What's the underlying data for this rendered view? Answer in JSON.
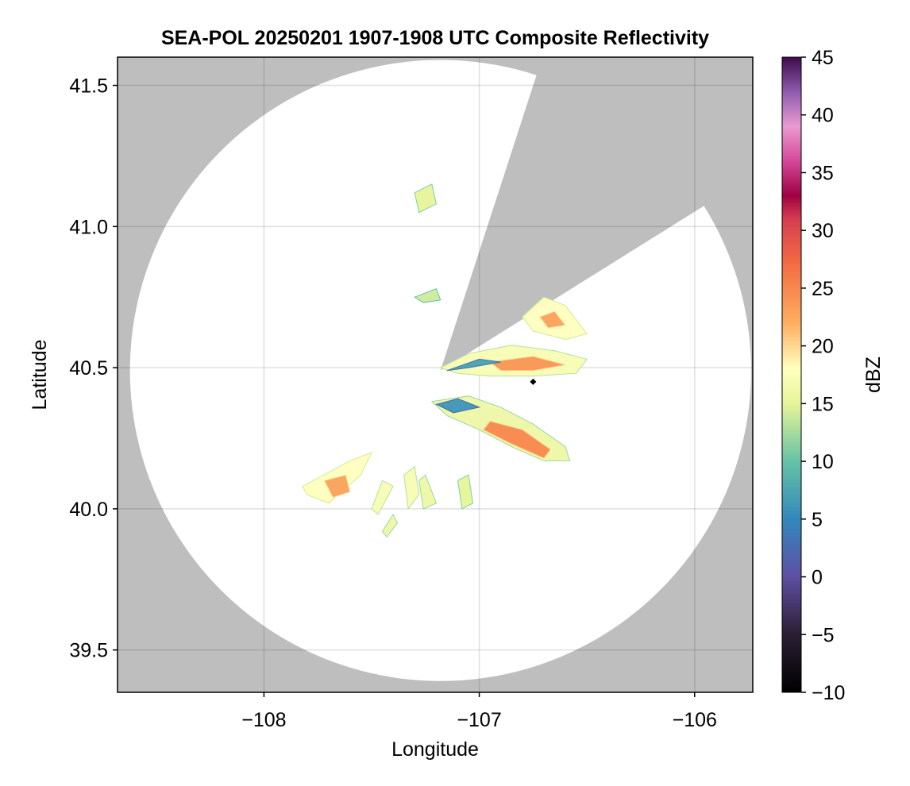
{
  "chart_data": {
    "type": "heatmap",
    "title": "SEA-POL 20250201 1907-1908 UTC Composite Reflectivity",
    "xlabel": "Longitude",
    "ylabel": "Latitude",
    "xlim": [
      -108.68,
      -105.73
    ],
    "ylim": [
      39.35,
      41.6
    ],
    "xticks": [
      -108,
      -107,
      -106
    ],
    "xtick_labels": [
      "−108",
      "−107",
      "−106"
    ],
    "yticks": [
      39.5,
      40.0,
      40.5,
      41.0,
      41.5
    ],
    "ytick_labels": [
      "39.5",
      "40.0",
      "40.5",
      "41.0",
      "41.5"
    ],
    "grid": true,
    "background_color": "#bebebe",
    "radar_coverage": {
      "center": [
        -107.18,
        40.49
      ],
      "radius_lat_deg": 1.1,
      "blocked_sector_deg_from_north": [
        18,
        58
      ]
    },
    "radar_site_marker": {
      "lon": -106.75,
      "lat": 40.45,
      "marker": "diamond",
      "color": "#000000"
    },
    "colorbar": {
      "label": "dBZ",
      "range": [
        -10,
        45
      ],
      "ticks": [
        -10,
        -5,
        0,
        5,
        10,
        15,
        20,
        25,
        30,
        35,
        40,
        45
      ],
      "tick_labels": [
        "−10",
        "−5",
        "0",
        "5",
        "10",
        "15",
        "20",
        "25",
        "30",
        "35",
        "40",
        "45"
      ],
      "colormap": "spectral + magma-like",
      "color_stops": [
        {
          "value": -10,
          "color": "#000000"
        },
        {
          "value": -5,
          "color": "#2a1e34"
        },
        {
          "value": 0,
          "color": "#5e4fa2"
        },
        {
          "value": 5,
          "color": "#3288bd"
        },
        {
          "value": 10,
          "color": "#66c2a5"
        },
        {
          "value": 15,
          "color": "#e6f598"
        },
        {
          "value": 18,
          "color": "#ffffbf"
        },
        {
          "value": 22,
          "color": "#fdae61"
        },
        {
          "value": 27,
          "color": "#f46d43"
        },
        {
          "value": 31,
          "color": "#d53e4f"
        },
        {
          "value": 33,
          "color": "#9e0142"
        },
        {
          "value": 36,
          "color": "#d4489a"
        },
        {
          "value": 39,
          "color": "#e99ad0"
        },
        {
          "value": 42,
          "color": "#8e5cae"
        },
        {
          "value": 45,
          "color": "#3d0a4a"
        }
      ]
    },
    "echo_regions": [
      {
        "name": "band-north-east",
        "dbz": 17,
        "points": [
          [
            -107.18,
            40.5
          ],
          [
            -107.05,
            40.55
          ],
          [
            -106.85,
            40.58
          ],
          [
            -106.65,
            40.56
          ],
          [
            -106.5,
            40.53
          ],
          [
            -106.55,
            40.48
          ],
          [
            -106.75,
            40.47
          ],
          [
            -106.95,
            40.47
          ],
          [
            -107.1,
            40.48
          ]
        ]
      },
      {
        "name": "band-north-east-core",
        "dbz": 24,
        "points": [
          [
            -106.95,
            40.52
          ],
          [
            -106.75,
            40.54
          ],
          [
            -106.6,
            40.51
          ],
          [
            -106.75,
            40.49
          ],
          [
            -106.9,
            40.49
          ]
        ]
      },
      {
        "name": "band-north-edge",
        "dbz": 7,
        "points": [
          [
            -107.15,
            40.49
          ],
          [
            -107.0,
            40.53
          ],
          [
            -106.9,
            40.52
          ],
          [
            -107.05,
            40.5
          ]
        ]
      },
      {
        "name": "cell-upper-right",
        "dbz": 18,
        "points": [
          [
            -106.8,
            40.68
          ],
          [
            -106.7,
            40.75
          ],
          [
            -106.6,
            40.72
          ],
          [
            -106.5,
            40.62
          ],
          [
            -106.6,
            40.6
          ],
          [
            -106.75,
            40.63
          ]
        ]
      },
      {
        "name": "cell-upper-right-core",
        "dbz": 23,
        "points": [
          [
            -106.72,
            40.68
          ],
          [
            -106.65,
            40.7
          ],
          [
            -106.6,
            40.65
          ],
          [
            -106.68,
            40.64
          ]
        ]
      },
      {
        "name": "band-south-east",
        "dbz": 16,
        "points": [
          [
            -107.22,
            40.38
          ],
          [
            -107.05,
            40.4
          ],
          [
            -106.9,
            40.36
          ],
          [
            -106.75,
            40.3
          ],
          [
            -106.6,
            40.22
          ],
          [
            -106.58,
            40.17
          ],
          [
            -106.7,
            40.17
          ],
          [
            -106.85,
            40.22
          ],
          [
            -107.0,
            40.28
          ],
          [
            -107.15,
            40.33
          ]
        ]
      },
      {
        "name": "band-south-east-core",
        "dbz": 25,
        "points": [
          [
            -106.95,
            40.31
          ],
          [
            -106.8,
            40.28
          ],
          [
            -106.67,
            40.21
          ],
          [
            -106.7,
            40.18
          ],
          [
            -106.85,
            40.23
          ],
          [
            -106.98,
            40.28
          ]
        ]
      },
      {
        "name": "band-south-edge",
        "dbz": 6,
        "points": [
          [
            -107.2,
            40.37
          ],
          [
            -107.1,
            40.39
          ],
          [
            -107.0,
            40.36
          ],
          [
            -107.12,
            40.34
          ]
        ]
      },
      {
        "name": "cell-south-west",
        "dbz": 18,
        "points": [
          [
            -107.82,
            40.08
          ],
          [
            -107.6,
            40.17
          ],
          [
            -107.5,
            40.2
          ],
          [
            -107.55,
            40.12
          ],
          [
            -107.7,
            40.02
          ],
          [
            -107.8,
            40.05
          ]
        ]
      },
      {
        "name": "cell-south-west-core",
        "dbz": 23,
        "points": [
          [
            -107.72,
            40.1
          ],
          [
            -107.62,
            40.12
          ],
          [
            -107.6,
            40.06
          ],
          [
            -107.68,
            40.04
          ]
        ]
      },
      {
        "name": "streak-1",
        "dbz": 17,
        "points": [
          [
            -107.5,
            40.0
          ],
          [
            -107.45,
            40.1
          ],
          [
            -107.4,
            40.08
          ],
          [
            -107.47,
            39.98
          ]
        ]
      },
      {
        "name": "streak-2",
        "dbz": 16,
        "points": [
          [
            -107.45,
            39.92
          ],
          [
            -107.4,
            39.98
          ],
          [
            -107.38,
            39.95
          ],
          [
            -107.43,
            39.9
          ]
        ]
      },
      {
        "name": "streak-3",
        "dbz": 17,
        "points": [
          [
            -107.35,
            40.12
          ],
          [
            -107.3,
            40.15
          ],
          [
            -107.28,
            40.05
          ],
          [
            -107.33,
            40.0
          ]
        ]
      },
      {
        "name": "streak-4",
        "dbz": 16,
        "points": [
          [
            -107.28,
            40.1
          ],
          [
            -107.25,
            40.12
          ],
          [
            -107.2,
            40.02
          ],
          [
            -107.26,
            40.0
          ]
        ]
      },
      {
        "name": "streak-5",
        "dbz": 15,
        "points": [
          [
            -107.1,
            40.1
          ],
          [
            -107.05,
            40.12
          ],
          [
            -107.03,
            40.02
          ],
          [
            -107.08,
            40.0
          ]
        ]
      },
      {
        "name": "cells-north",
        "dbz": 15,
        "points": [
          [
            -107.3,
            41.12
          ],
          [
            -107.22,
            41.15
          ],
          [
            -107.2,
            41.08
          ],
          [
            -107.28,
            41.05
          ]
        ]
      },
      {
        "name": "cells-north-2",
        "dbz": 14,
        "points": [
          [
            -107.3,
            40.75
          ],
          [
            -107.2,
            40.78
          ],
          [
            -107.18,
            40.74
          ],
          [
            -107.26,
            40.73
          ]
        ]
      }
    ]
  }
}
